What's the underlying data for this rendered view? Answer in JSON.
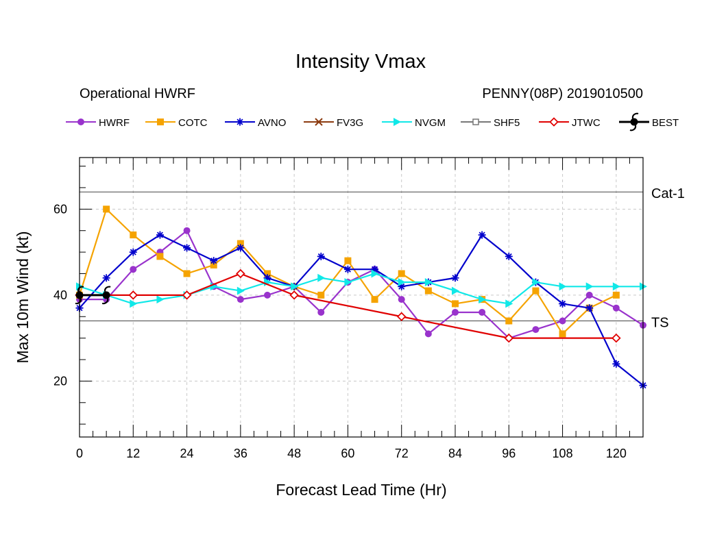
{
  "colors": {
    "HWRF": "#9933cc",
    "COTC": "#f5a300",
    "AVNO": "#0000cc",
    "FV3G": "#8b3a0f",
    "NVGM": "#10e8e8",
    "SHF5": "#777777",
    "JTWC": "#e00000",
    "BEST": "#000000"
  },
  "chart_data": {
    "type": "line",
    "title": "Intensity Vmax",
    "subtitle_left": "Operational HWRF",
    "subtitle_right": "PENNY(08P) 2019010500",
    "xlabel": "Forecast Lead Time (Hr)",
    "ylabel": "Max 10m Wind (kt)",
    "xlim": [
      0,
      126
    ],
    "ylim": [
      7,
      72
    ],
    "xticks": [
      0,
      12,
      24,
      36,
      48,
      60,
      72,
      84,
      96,
      108,
      120
    ],
    "yticks": [
      20,
      40,
      60
    ],
    "grid": true,
    "legend_position": "top",
    "reference_lines": [
      {
        "label": "Cat-1",
        "value": 64
      },
      {
        "label": "TS",
        "value": 34
      }
    ],
    "series": [
      {
        "name": "HWRF",
        "marker": "circle",
        "x": [
          0,
          6,
          12,
          18,
          24,
          30,
          36,
          42,
          48,
          54,
          60,
          66,
          72,
          78,
          84,
          90,
          96,
          102,
          108,
          114,
          120,
          126
        ],
        "y": [
          39,
          39,
          46,
          50,
          55,
          42,
          39,
          40,
          42,
          36,
          43,
          46,
          39,
          31,
          36,
          36,
          30,
          32,
          34,
          40,
          37,
          33
        ]
      },
      {
        "name": "COTC",
        "marker": "square",
        "x": [
          0,
          6,
          12,
          18,
          24,
          30,
          36,
          42,
          48,
          54,
          60,
          66,
          72,
          78,
          84,
          90,
          96,
          102,
          108,
          114,
          120
        ],
        "y": [
          40,
          60,
          54,
          49,
          45,
          47,
          52,
          45,
          42,
          40,
          48,
          39,
          45,
          41,
          38,
          39,
          34,
          41,
          31,
          37,
          40
        ]
      },
      {
        "name": "AVNO",
        "marker": "star",
        "x": [
          0,
          6,
          12,
          18,
          24,
          30,
          36,
          42,
          48,
          54,
          60,
          66,
          72,
          78,
          84,
          90,
          96,
          102,
          108,
          114,
          120,
          126
        ],
        "y": [
          37,
          44,
          50,
          54,
          51,
          48,
          51,
          44,
          42,
          49,
          46,
          46,
          42,
          43,
          44,
          54,
          49,
          43,
          38,
          37,
          24,
          19
        ]
      },
      {
        "name": "FV3G",
        "marker": "x",
        "x": [],
        "y": []
      },
      {
        "name": "NVGM",
        "marker": "triangle",
        "x": [
          0,
          6,
          12,
          18,
          24,
          30,
          36,
          42,
          48,
          54,
          60,
          66,
          72,
          78,
          84,
          90,
          96,
          102,
          108,
          114,
          120,
          126
        ],
        "y": [
          42,
          40,
          38,
          39,
          40,
          42,
          41,
          43,
          42,
          44,
          43,
          45,
          43,
          43,
          41,
          39,
          38,
          43,
          42,
          42,
          42,
          42
        ]
      },
      {
        "name": "SHF5",
        "marker": "open-square",
        "x": [],
        "y": []
      },
      {
        "name": "JTWC",
        "marker": "diamond",
        "x": [
          0,
          12,
          24,
          36,
          48,
          72,
          96,
          120
        ],
        "y": [
          40,
          40,
          40,
          45,
          40,
          35,
          30,
          30
        ]
      },
      {
        "name": "BEST",
        "marker": "hurricane",
        "x": [
          0,
          6
        ],
        "y": [
          40,
          40
        ]
      }
    ]
  }
}
